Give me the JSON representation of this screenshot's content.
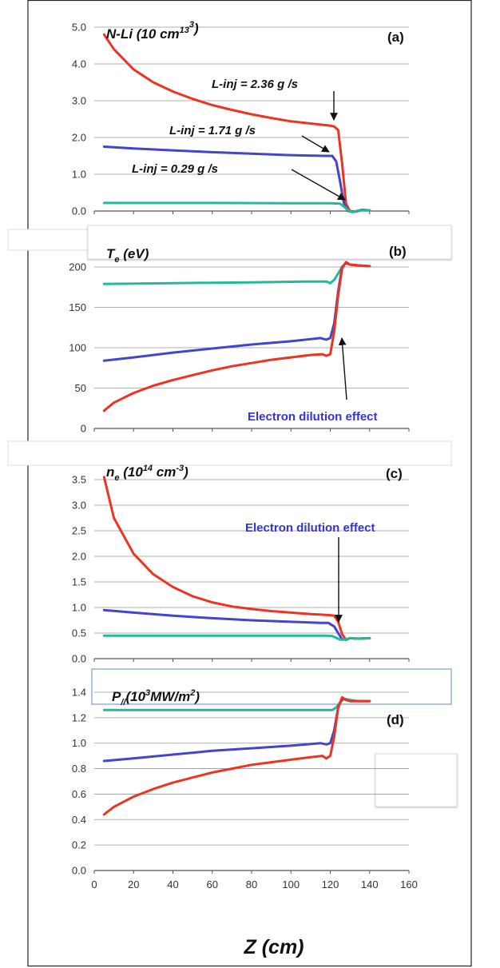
{
  "colors": {
    "red": "#ee3322",
    "blue": "#4444cc",
    "teal": "#22bb99",
    "grid": "#999999",
    "annotation_blue": "#3333dd"
  },
  "x_axis": {
    "label": "Z (cm)",
    "ticks": [
      "0",
      "20",
      "40",
      "60",
      "80",
      "100",
      "120",
      "140",
      "160"
    ],
    "range": [
      0,
      160
    ]
  },
  "annotations": {
    "linj_red": "L-inj  =  2.36 g /s",
    "linj_blue": "L-inj  =  1.71 g /s",
    "linj_teal": "L-inj  =  0.29 g /s",
    "dilution_b": "Electron dilution effect",
    "dilution_c": "Electron dilution effect"
  },
  "chart_data": [
    {
      "type": "line",
      "panel_label": "(a)",
      "title": {
        "main": "N-Li (10",
        "sup": "13",
        "mid": " cm",
        "sup2": "3",
        "end": ")"
      },
      "ylim": [
        0,
        5
      ],
      "yticks": [
        "0.0",
        "1.0",
        "2.0",
        "3.0",
        "4.0",
        "5.0"
      ],
      "ytick_values": [
        0,
        1,
        2,
        3,
        4,
        5
      ],
      "grid": true,
      "series": [
        {
          "color_key": "red",
          "x": [
            5,
            10,
            20,
            30,
            40,
            50,
            60,
            70,
            80,
            90,
            100,
            110,
            117,
            120,
            122,
            124,
            126,
            128,
            130,
            133,
            136,
            140
          ],
          "y": [
            4.8,
            4.4,
            3.85,
            3.5,
            3.25,
            3.05,
            2.88,
            2.75,
            2.63,
            2.53,
            2.44,
            2.38,
            2.34,
            2.32,
            2.3,
            2.2,
            1.3,
            0.2,
            0.0,
            -0.02,
            0.03,
            0.02
          ]
        },
        {
          "color_key": "blue",
          "x": [
            5,
            20,
            40,
            60,
            80,
            100,
            117,
            121,
            123,
            125,
            127,
            129,
            132,
            136,
            140
          ],
          "y": [
            1.75,
            1.7,
            1.65,
            1.6,
            1.56,
            1.52,
            1.5,
            1.5,
            1.35,
            0.8,
            0.2,
            0.0,
            -0.02,
            0.03,
            0.02
          ]
        },
        {
          "color_key": "teal",
          "x": [
            5,
            20,
            60,
            100,
            120,
            125,
            127,
            129,
            131,
            135,
            140
          ],
          "y": [
            0.22,
            0.22,
            0.22,
            0.21,
            0.21,
            0.2,
            0.12,
            0.02,
            -0.03,
            0.02,
            0.02
          ]
        }
      ]
    },
    {
      "type": "line",
      "panel_label": "(b)",
      "title": {
        "main": "T",
        "sub": "e",
        "end": " (eV)"
      },
      "ylim": [
        0,
        200
      ],
      "yticks": [
        "0",
        "50",
        "100",
        "150",
        "200"
      ],
      "ytick_values": [
        0,
        50,
        100,
        150,
        200
      ],
      "grid": true,
      "series": [
        {
          "color_key": "teal",
          "x": [
            5,
            40,
            80,
            110,
            118,
            120,
            122,
            124,
            126,
            128,
            130,
            134,
            140
          ],
          "y": [
            179,
            180,
            181,
            182,
            182,
            180,
            184,
            192,
            200,
            205,
            203,
            202,
            201
          ]
        },
        {
          "color_key": "blue",
          "x": [
            5,
            20,
            40,
            60,
            80,
            100,
            115,
            118,
            120,
            122,
            124,
            126,
            128,
            130,
            134,
            140
          ],
          "y": [
            84,
            88,
            94,
            99,
            104,
            108,
            112,
            110,
            112,
            130,
            170,
            200,
            205,
            203,
            202,
            201
          ]
        },
        {
          "color_key": "red",
          "x": [
            5,
            10,
            20,
            30,
            40,
            50,
            60,
            70,
            80,
            90,
            100,
            110,
            116,
            118,
            120,
            122,
            124,
            126,
            128,
            130,
            134,
            140
          ],
          "y": [
            22,
            32,
            44,
            53,
            60,
            66,
            72,
            77,
            81,
            85,
            88,
            91,
            92,
            90,
            92,
            120,
            165,
            198,
            206,
            203,
            202,
            201
          ]
        }
      ]
    },
    {
      "type": "line",
      "panel_label": "(c)",
      "title": {
        "main": "n",
        "sub": "e",
        "mid": " (10",
        "sup": "14",
        "mid2": " cm",
        "sup2": "-3",
        "end": ")"
      },
      "ylim": [
        0,
        3.5
      ],
      "yticks": [
        "0.0",
        "0.5",
        "1.0",
        "1.5",
        "2.0",
        "2.5",
        "3.0",
        "3.5"
      ],
      "ytick_values": [
        0,
        0.5,
        1,
        1.5,
        2,
        2.5,
        3,
        3.5
      ],
      "grid": true,
      "series": [
        {
          "color_key": "red",
          "x": [
            5,
            10,
            20,
            30,
            40,
            50,
            60,
            70,
            80,
            90,
            100,
            110,
            116,
            120,
            122,
            124,
            126,
            128,
            130,
            134,
            140
          ],
          "y": [
            3.55,
            2.75,
            2.05,
            1.65,
            1.4,
            1.22,
            1.1,
            1.02,
            0.97,
            0.93,
            0.9,
            0.87,
            0.86,
            0.85,
            0.84,
            0.72,
            0.48,
            0.37,
            0.4,
            0.39,
            0.4
          ]
        },
        {
          "color_key": "blue",
          "x": [
            5,
            20,
            40,
            60,
            80,
            100,
            115,
            119,
            122,
            124,
            126,
            128,
            130,
            134,
            140
          ],
          "y": [
            0.95,
            0.9,
            0.84,
            0.79,
            0.75,
            0.72,
            0.7,
            0.7,
            0.63,
            0.5,
            0.38,
            0.37,
            0.4,
            0.39,
            0.4
          ]
        },
        {
          "color_key": "teal",
          "x": [
            5,
            40,
            80,
            110,
            118,
            121,
            123,
            125,
            127,
            130,
            134,
            140
          ],
          "y": [
            0.45,
            0.45,
            0.45,
            0.45,
            0.45,
            0.44,
            0.41,
            0.37,
            0.37,
            0.4,
            0.39,
            0.4
          ]
        }
      ]
    },
    {
      "type": "line",
      "panel_label": "(d)",
      "title": {
        "main": "P",
        "sub": "//",
        "mid": "(10",
        "sup": "3",
        "mid2": "MW/m",
        "sup2": "2",
        "end": ")"
      },
      "ylim": [
        0,
        1.4
      ],
      "yticks": [
        "0.0",
        "0.2",
        "0.4",
        "0.6",
        "0.8",
        "1.0",
        "1.2",
        "1.4"
      ],
      "ytick_values": [
        0,
        0.2,
        0.4,
        0.6,
        0.8,
        1.0,
        1.2,
        1.4
      ],
      "grid": true,
      "series": [
        {
          "color_key": "teal",
          "x": [
            5,
            40,
            80,
            110,
            118,
            121,
            123,
            125,
            127,
            130,
            134,
            140
          ],
          "y": [
            1.26,
            1.26,
            1.26,
            1.26,
            1.26,
            1.26,
            1.28,
            1.32,
            1.35,
            1.34,
            1.33,
            1.33
          ]
        },
        {
          "color_key": "blue",
          "x": [
            5,
            20,
            40,
            60,
            80,
            100,
            115,
            118,
            120,
            122,
            124,
            126,
            128,
            130,
            134,
            140
          ],
          "y": [
            0.86,
            0.88,
            0.91,
            0.94,
            0.96,
            0.98,
            1.0,
            0.99,
            1.0,
            1.1,
            1.28,
            1.35,
            1.34,
            1.33,
            1.33,
            1.33
          ]
        },
        {
          "color_key": "red",
          "x": [
            5,
            10,
            20,
            30,
            40,
            50,
            60,
            70,
            80,
            90,
            100,
            110,
            116,
            118,
            120,
            122,
            124,
            126,
            128,
            130,
            134,
            140
          ],
          "y": [
            0.44,
            0.5,
            0.58,
            0.64,
            0.69,
            0.73,
            0.77,
            0.8,
            0.83,
            0.85,
            0.87,
            0.89,
            0.9,
            0.88,
            0.9,
            1.05,
            1.28,
            1.36,
            1.34,
            1.33,
            1.33,
            1.33
          ]
        }
      ]
    }
  ]
}
